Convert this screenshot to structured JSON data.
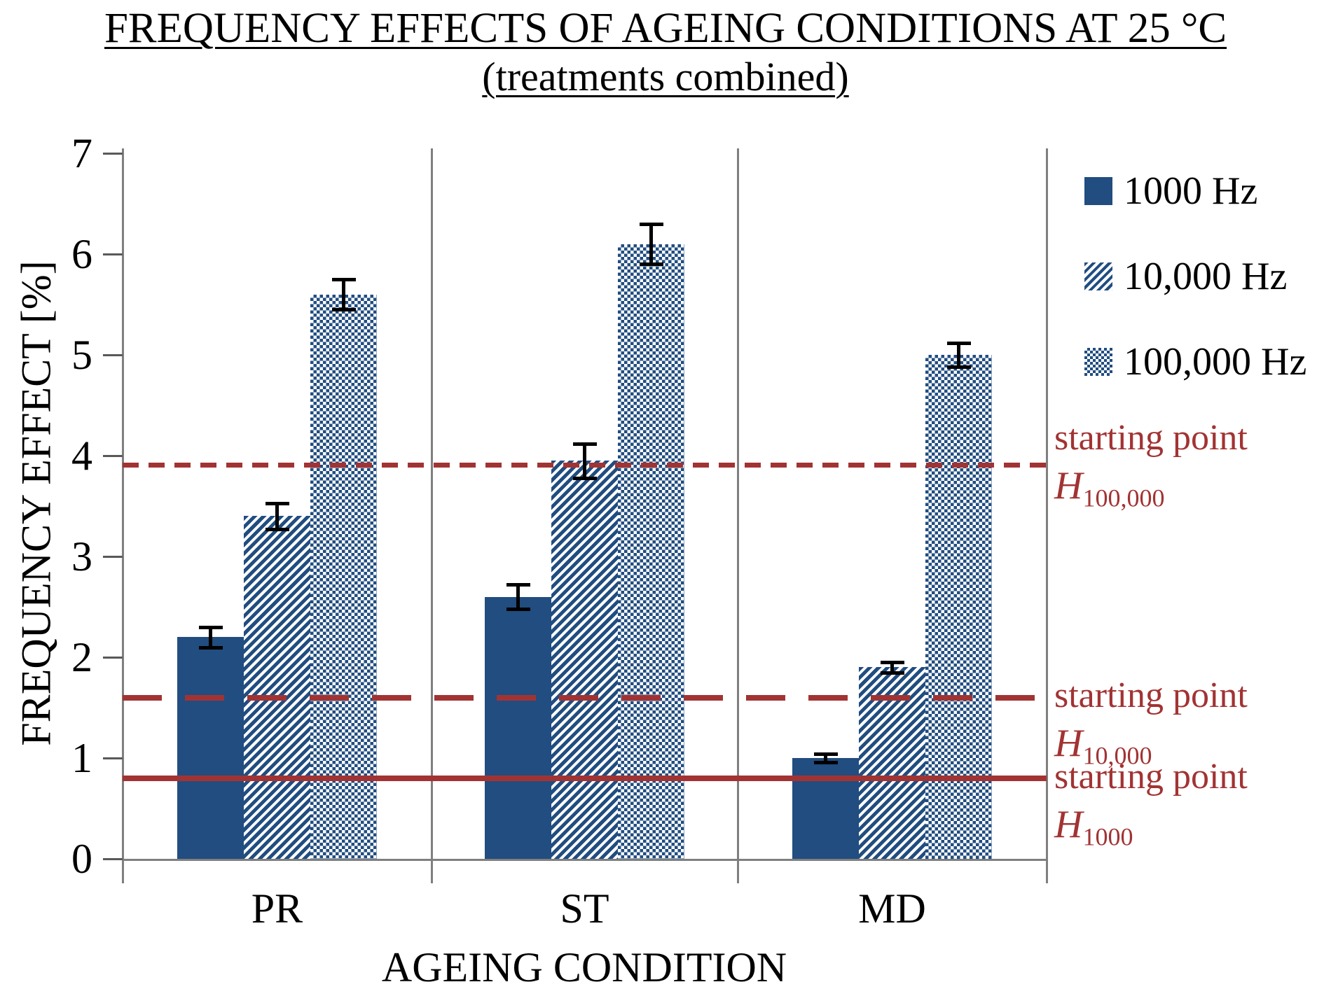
{
  "title": {
    "line1": "FREQUENCY EFFECTS OF AGEING CONDITIONS AT 25 °C",
    "line2": "(treatments combined)"
  },
  "colors": {
    "bar_blue": "#214D80",
    "reference_red": "#A23333",
    "axis_gray": "#7F7F7F",
    "error_bar_black": "#000000"
  },
  "chart_data": {
    "type": "bar",
    "title": "FREQUENCY EFFECTS OF AGEING CONDITIONS AT 25 °C",
    "subtitle": "(treatments combined)",
    "xlabel": "AGEING CONDITION",
    "ylabel": "FREQUENCY EFFECT [%]",
    "ylim": [
      0,
      7
    ],
    "yticks": [
      0,
      1,
      2,
      3,
      4,
      5,
      6,
      7
    ],
    "grid": false,
    "legend_position": "right",
    "categories": [
      "PR",
      "ST",
      "MD"
    ],
    "series": [
      {
        "name": "1000 Hz",
        "pattern": "solid",
        "values": [
          2.2,
          2.6,
          1.0
        ],
        "errors": [
          0.1,
          0.12,
          0.04
        ]
      },
      {
        "name": "10,000 Hz",
        "pattern": "diagonal-stripes",
        "values": [
          3.4,
          3.95,
          1.9
        ],
        "errors": [
          0.13,
          0.17,
          0.05
        ]
      },
      {
        "name": "100,000 Hz",
        "pattern": "checker-dots",
        "values": [
          5.6,
          6.1,
          5.0
        ],
        "errors": [
          0.15,
          0.2,
          0.12
        ]
      }
    ],
    "reference_lines": [
      {
        "label": "starting point",
        "h_symbol": "H",
        "h_subscript": "100,000",
        "value": 3.9,
        "style": "dashed"
      },
      {
        "label": "starting point",
        "h_symbol": "H",
        "h_subscript": "10,000",
        "value": 1.6,
        "style": "long-dash"
      },
      {
        "label": "starting point",
        "h_symbol": "H",
        "h_subscript": "1000",
        "value": 0.8,
        "style": "solid"
      }
    ]
  }
}
